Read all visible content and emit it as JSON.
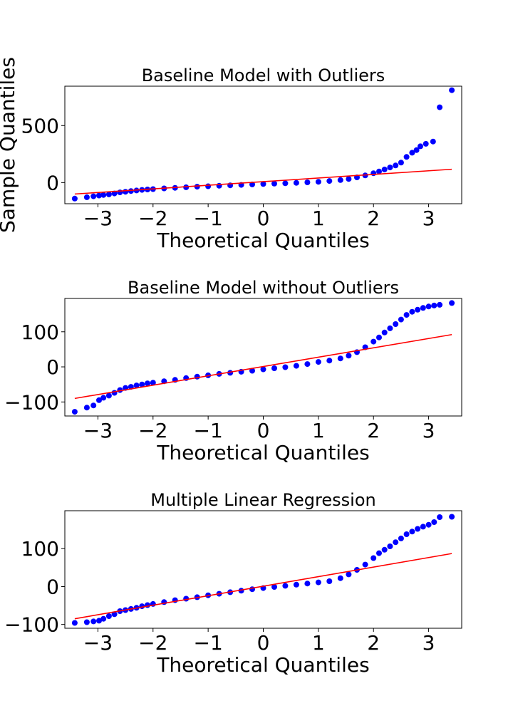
{
  "chart_data": [
    {
      "type": "scatter",
      "title": "Baseline Model with Outliers",
      "xlabel": "Theoretical Quantiles",
      "ylabel": "Sample Quantiles",
      "xlim": [
        -3.6,
        3.6
      ],
      "ylim": [
        -185,
        845
      ],
      "xticks": [
        -3,
        -2,
        -1,
        0,
        1,
        2,
        3
      ],
      "xtick_labels": [
        "−3",
        "−2",
        "−1",
        "0",
        "1",
        "2",
        "3"
      ],
      "yticks": [
        0,
        500
      ],
      "ytick_labels": [
        "0",
        "500"
      ],
      "grid": false,
      "series": [
        {
          "color": "#0000ff",
          "points": [
            [
              -3.42,
              -140
            ],
            [
              -3.2,
              -128
            ],
            [
              -3.08,
              -120
            ],
            [
              -2.98,
              -113
            ],
            [
              -2.9,
              -108
            ],
            [
              -2.8,
              -103
            ],
            [
              -2.7,
              -95
            ],
            [
              -2.6,
              -86
            ],
            [
              -2.5,
              -80
            ],
            [
              -2.4,
              -74
            ],
            [
              -2.3,
              -69
            ],
            [
              -2.2,
              -64
            ],
            [
              -2.1,
              -60
            ],
            [
              -2.0,
              -57
            ],
            [
              -1.8,
              -51
            ],
            [
              -1.6,
              -46
            ],
            [
              -1.4,
              -41
            ],
            [
              -1.2,
              -36
            ],
            [
              -1.0,
              -32
            ],
            [
              -0.8,
              -28
            ],
            [
              -0.6,
              -24
            ],
            [
              -0.4,
              -20
            ],
            [
              -0.2,
              -16
            ],
            [
              0.0,
              -12
            ],
            [
              0.2,
              -9
            ],
            [
              0.4,
              -6
            ],
            [
              0.6,
              -2
            ],
            [
              0.8,
              2
            ],
            [
              1.0,
              7
            ],
            [
              1.2,
              14
            ],
            [
              1.4,
              22
            ],
            [
              1.55,
              32
            ],
            [
              1.7,
              46
            ],
            [
              1.85,
              63
            ],
            [
              2.0,
              82
            ],
            [
              2.1,
              98
            ],
            [
              2.2,
              115
            ],
            [
              2.3,
              133
            ],
            [
              2.4,
              150
            ],
            [
              2.5,
              175
            ],
            [
              2.6,
              225
            ],
            [
              2.7,
              262
            ],
            [
              2.78,
              285
            ],
            [
              2.85,
              318
            ],
            [
              2.95,
              340
            ],
            [
              3.08,
              360
            ],
            [
              3.2,
              660
            ],
            [
              3.42,
              810
            ]
          ]
        }
      ],
      "reference_line": {
        "color": "#ff0000",
        "x": [
          -3.42,
          3.42
        ],
        "y": [
          -100,
          117
        ]
      }
    },
    {
      "type": "scatter",
      "title": "Baseline Model without Outliers",
      "xlabel": "Theoretical Quantiles",
      "ylabel": "",
      "xlim": [
        -3.6,
        3.6
      ],
      "ylim": [
        -140,
        195
      ],
      "xticks": [
        -3,
        -2,
        -1,
        0,
        1,
        2,
        3
      ],
      "xtick_labels": [
        "−3",
        "−2",
        "−1",
        "0",
        "1",
        "2",
        "3"
      ],
      "yticks": [
        -100,
        0,
        100
      ],
      "ytick_labels": [
        "−100",
        "0",
        "100"
      ],
      "grid": false,
      "series": [
        {
          "color": "#0000ff",
          "points": [
            [
              -3.42,
              -128
            ],
            [
              -3.2,
              -116
            ],
            [
              -3.08,
              -110
            ],
            [
              -2.98,
              -95
            ],
            [
              -2.9,
              -88
            ],
            [
              -2.8,
              -82
            ],
            [
              -2.7,
              -74
            ],
            [
              -2.6,
              -66
            ],
            [
              -2.5,
              -60
            ],
            [
              -2.4,
              -57
            ],
            [
              -2.3,
              -53
            ],
            [
              -2.2,
              -50
            ],
            [
              -2.1,
              -47
            ],
            [
              -2.0,
              -45
            ],
            [
              -1.8,
              -41
            ],
            [
              -1.6,
              -37
            ],
            [
              -1.4,
              -32
            ],
            [
              -1.2,
              -28
            ],
            [
              -1.0,
              -24
            ],
            [
              -0.8,
              -20
            ],
            [
              -0.6,
              -17
            ],
            [
              -0.4,
              -14
            ],
            [
              -0.2,
              -11
            ],
            [
              0.0,
              -7
            ],
            [
              0.2,
              -4
            ],
            [
              0.4,
              -1
            ],
            [
              0.6,
              3
            ],
            [
              0.8,
              8
            ],
            [
              1.0,
              14
            ],
            [
              1.2,
              18
            ],
            [
              1.4,
              24
            ],
            [
              1.55,
              32
            ],
            [
              1.7,
              42
            ],
            [
              1.85,
              56
            ],
            [
              2.0,
              72
            ],
            [
              2.1,
              84
            ],
            [
              2.2,
              98
            ],
            [
              2.3,
              110
            ],
            [
              2.4,
              122
            ],
            [
              2.5,
              135
            ],
            [
              2.6,
              148
            ],
            [
              2.7,
              157
            ],
            [
              2.8,
              163
            ],
            [
              2.9,
              168
            ],
            [
              3.0,
              172
            ],
            [
              3.1,
              175
            ],
            [
              3.2,
              177
            ],
            [
              3.42,
              182
            ]
          ]
        }
      ],
      "reference_line": {
        "color": "#ff0000",
        "x": [
          -3.42,
          3.42
        ],
        "y": [
          -90,
          92
        ]
      }
    },
    {
      "type": "scatter",
      "title": "Multiple Linear Regression",
      "xlabel": "Theoretical Quantiles",
      "ylabel": "",
      "xlim": [
        -3.6,
        3.6
      ],
      "ylim": [
        -110,
        200
      ],
      "xticks": [
        -3,
        -2,
        -1,
        0,
        1,
        2,
        3
      ],
      "xtick_labels": [
        "−3",
        "−2",
        "−1",
        "0",
        "1",
        "2",
        "3"
      ],
      "yticks": [
        -100,
        0,
        100
      ],
      "ytick_labels": [
        "−100",
        "0",
        "100"
      ],
      "grid": false,
      "series": [
        {
          "color": "#0000ff",
          "points": [
            [
              -3.42,
              -96
            ],
            [
              -3.2,
              -94
            ],
            [
              -3.08,
              -92
            ],
            [
              -2.98,
              -90
            ],
            [
              -2.9,
              -85
            ],
            [
              -2.8,
              -78
            ],
            [
              -2.7,
              -73
            ],
            [
              -2.6,
              -65
            ],
            [
              -2.5,
              -62
            ],
            [
              -2.4,
              -59
            ],
            [
              -2.3,
              -56
            ],
            [
              -2.2,
              -52
            ],
            [
              -2.1,
              -49
            ],
            [
              -2.0,
              -46
            ],
            [
              -1.8,
              -41
            ],
            [
              -1.6,
              -36
            ],
            [
              -1.4,
              -32
            ],
            [
              -1.2,
              -28
            ],
            [
              -1.0,
              -23
            ],
            [
              -0.8,
              -19
            ],
            [
              -0.6,
              -15
            ],
            [
              -0.4,
              -11
            ],
            [
              -0.2,
              -7
            ],
            [
              0.0,
              -4
            ],
            [
              0.2,
              -1
            ],
            [
              0.4,
              2
            ],
            [
              0.6,
              5
            ],
            [
              0.8,
              8
            ],
            [
              1.0,
              11
            ],
            [
              1.2,
              14
            ],
            [
              1.4,
              22
            ],
            [
              1.55,
              32
            ],
            [
              1.7,
              44
            ],
            [
              1.85,
              58
            ],
            [
              2.0,
              75
            ],
            [
              2.1,
              88
            ],
            [
              2.2,
              97
            ],
            [
              2.3,
              106
            ],
            [
              2.4,
              117
            ],
            [
              2.5,
              127
            ],
            [
              2.6,
              138
            ],
            [
              2.7,
              145
            ],
            [
              2.8,
              152
            ],
            [
              2.9,
              158
            ],
            [
              3.0,
              163
            ],
            [
              3.1,
              170
            ],
            [
              3.2,
              183
            ],
            [
              3.42,
              184
            ]
          ]
        }
      ],
      "reference_line": {
        "color": "#ff0000",
        "x": [
          -3.42,
          3.42
        ],
        "y": [
          -85,
          87
        ]
      }
    }
  ]
}
